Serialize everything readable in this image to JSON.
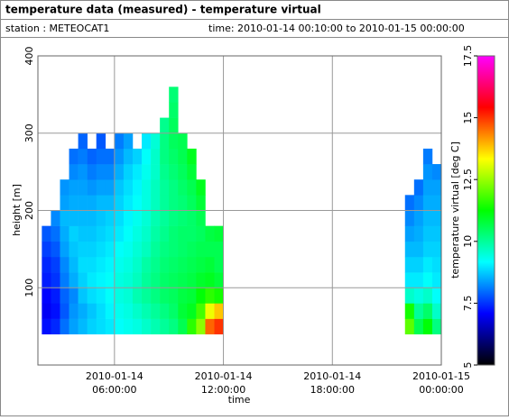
{
  "header": {
    "title": "temperature data (measured) - temperature virtual",
    "station": "station : METEOCAT1",
    "time": "time: 2010-01-14 00:10:00 to 2010-01-15 00:00:00"
  },
  "chart_data": {
    "type": "heatmap",
    "xlabel": "time",
    "ylabel": "height [m]",
    "colorbar_label": "temperature virtual [deg C]",
    "xlim": [
      "2010-01-14T01:47:00",
      "2010-01-15T00:00:00"
    ],
    "xticks": [
      {
        "value": "2010-01-14T06:00:00",
        "label": [
          "2010-01-14",
          "06:00:00"
        ]
      },
      {
        "value": "2010-01-14T12:00:00",
        "label": [
          "2010-01-14",
          "12:00:00"
        ]
      },
      {
        "value": "2010-01-14T18:00:00",
        "label": [
          "2010-01-14",
          "18:00:00"
        ]
      },
      {
        "value": "2010-01-15T00:00:00",
        "label": [
          "2010-01-15",
          "00:00:00"
        ]
      }
    ],
    "ylim": [
      0,
      400
    ],
    "yticks": [
      100,
      200,
      300,
      400
    ],
    "clim": [
      5,
      17.5
    ],
    "cticks": [
      5,
      7.5,
      10,
      12.5,
      15,
      17.5
    ],
    "colormap": [
      "#000000",
      "#0000ff",
      "#00ffff",
      "#00ff00",
      "#ffff00",
      "#ff0000",
      "#ff00ff"
    ],
    "grid": true,
    "y_bins": [
      40,
      60,
      80,
      100,
      120,
      140,
      160,
      180,
      200,
      220,
      240,
      260,
      280,
      300,
      320,
      340,
      360
    ],
    "x": [
      "2010-01-14T02:00:00",
      "2010-01-14T02:30:00",
      "2010-01-14T03:00:00",
      "2010-01-14T03:30:00",
      "2010-01-14T04:00:00",
      "2010-01-14T04:30:00",
      "2010-01-14T05:00:00",
      "2010-01-14T05:30:00",
      "2010-01-14T06:00:00",
      "2010-01-14T06:30:00",
      "2010-01-14T07:00:00",
      "2010-01-14T07:30:00",
      "2010-01-14T08:00:00",
      "2010-01-14T08:30:00",
      "2010-01-14T09:00:00",
      "2010-01-14T09:30:00",
      "2010-01-14T10:00:00",
      "2010-01-14T10:30:00",
      "2010-01-14T11:00:00",
      "2010-01-14T11:30:00",
      "2010-01-14T22:00:00",
      "2010-01-14T22:30:00",
      "2010-01-14T23:00:00",
      "2010-01-14T23:30:00"
    ],
    "values": [
      [
        7.2,
        7.0,
        7.1,
        7.3,
        7.4,
        7.6,
        7.8,
        null,
        null,
        null,
        null,
        null,
        null,
        null,
        null,
        null
      ],
      [
        7.4,
        7.2,
        7.3,
        7.5,
        7.6,
        7.8,
        8.0,
        8.2,
        null,
        null,
        null,
        null,
        null,
        null,
        null,
        null
      ],
      [
        8.0,
        7.8,
        7.9,
        8.1,
        8.2,
        8.4,
        8.5,
        8.6,
        8.4,
        8.3,
        null,
        null,
        null,
        null,
        null,
        null
      ],
      [
        8.4,
        8.3,
        8.2,
        8.5,
        8.6,
        8.7,
        8.8,
        8.6,
        8.5,
        8.4,
        8.2,
        8.0,
        null,
        null,
        null,
        null
      ],
      [
        8.6,
        8.5,
        8.7,
        8.8,
        8.9,
        8.8,
        8.7,
        8.6,
        8.5,
        8.4,
        8.3,
        8.1,
        7.9,
        null,
        null,
        null
      ],
      [
        8.8,
        8.7,
        8.9,
        9.0,
        8.9,
        8.8,
        8.7,
        8.6,
        8.5,
        8.3,
        8.1,
        7.9,
        null,
        null,
        null,
        null
      ],
      [
        8.9,
        8.9,
        9.0,
        9.1,
        9.0,
        8.9,
        8.8,
        8.7,
        8.6,
        8.4,
        8.2,
        8.0,
        7.8,
        null,
        null,
        null
      ],
      [
        9.0,
        9.1,
        9.2,
        9.2,
        9.1,
        9.0,
        8.9,
        8.8,
        8.6,
        8.4,
        8.2,
        8.0,
        null,
        null,
        null,
        null
      ],
      [
        9.2,
        9.3,
        9.4,
        9.4,
        9.3,
        9.2,
        9.0,
        8.9,
        8.8,
        8.7,
        8.5,
        8.3,
        8.1,
        null,
        null,
        null
      ],
      [
        9.3,
        9.4,
        9.5,
        9.5,
        9.4,
        9.3,
        9.2,
        9.1,
        9.0,
        8.9,
        8.8,
        8.6,
        8.4,
        null,
        null,
        null
      ],
      [
        9.4,
        9.6,
        9.8,
        9.7,
        9.6,
        9.5,
        9.4,
        9.3,
        9.2,
        9.1,
        9.0,
        8.8,
        null,
        null,
        null,
        null
      ],
      [
        9.6,
        9.8,
        10.0,
        10.0,
        9.9,
        9.7,
        9.6,
        9.5,
        9.4,
        9.4,
        9.3,
        9.2,
        9.0,
        null,
        null,
        null
      ],
      [
        9.8,
        10.0,
        10.2,
        10.2,
        10.1,
        10.0,
        9.9,
        9.8,
        9.7,
        9.7,
        9.6,
        9.6,
        9.5,
        null,
        null,
        null
      ],
      [
        10.0,
        10.2,
        10.4,
        10.4,
        10.3,
        10.2,
        10.1,
        10.0,
        10.0,
        10.0,
        10.1,
        10.2,
        10.2,
        10.1,
        null,
        null
      ],
      [
        10.2,
        10.4,
        10.5,
        10.5,
        10.4,
        10.3,
        10.3,
        10.2,
        10.2,
        10.2,
        10.3,
        10.4,
        10.5,
        10.5,
        10.4,
        10.3
      ],
      [
        10.6,
        10.8,
        10.7,
        10.6,
        10.5,
        10.4,
        10.4,
        10.3,
        10.3,
        10.4,
        10.5,
        10.6,
        10.6,
        null,
        null,
        null
      ],
      [
        11.6,
        11.0,
        10.8,
        10.7,
        10.6,
        10.5,
        10.4,
        10.4,
        10.5,
        10.6,
        10.8,
        11.0,
        null,
        null,
        null,
        null
      ],
      [
        12.4,
        11.8,
        11.2,
        10.9,
        10.7,
        10.6,
        10.5,
        10.6,
        10.8,
        11.0,
        null,
        null,
        null,
        null,
        null,
        null
      ],
      [
        14.6,
        13.2,
        11.6,
        11.0,
        10.8,
        10.6,
        10.7,
        null,
        null,
        null,
        null,
        null,
        null,
        null,
        null,
        null
      ],
      [
        15.0,
        13.8,
        11.4,
        10.8,
        10.6,
        10.6,
        10.8,
        null,
        null,
        null,
        null,
        null,
        null,
        null,
        null,
        null
      ],
      [
        12.0,
        11.4,
        9.6,
        9.0,
        8.8,
        8.6,
        8.4,
        8.2,
        8.0,
        null,
        null,
        null,
        null,
        null,
        null,
        null
      ],
      [
        10.6,
        10.0,
        9.4,
        9.0,
        8.8,
        8.6,
        8.5,
        8.4,
        8.2,
        8.0,
        null,
        null,
        null,
        null,
        null,
        null
      ],
      [
        11.2,
        10.4,
        9.6,
        9.2,
        9.0,
        8.8,
        8.7,
        8.6,
        8.5,
        8.4,
        8.3,
        8.1,
        null,
        null,
        null,
        null
      ],
      [
        10.2,
        9.6,
        9.2,
        9.0,
        8.9,
        8.8,
        8.7,
        8.6,
        8.5,
        8.4,
        8.2,
        null,
        null,
        null,
        null,
        null
      ]
    ]
  }
}
